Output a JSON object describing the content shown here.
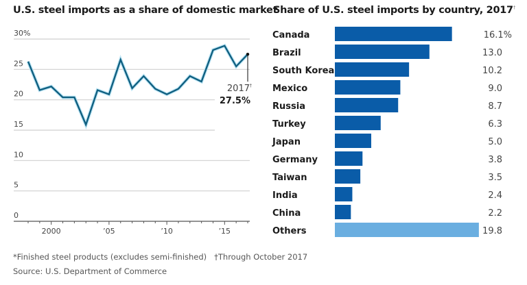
{
  "chart_data": [
    {
      "type": "line",
      "title": "U.S. steel imports as a share of domestic market",
      "title_marker": "*",
      "xlabel": "",
      "ylabel": "",
      "ylim": [
        0,
        30
      ],
      "yticks": [
        0,
        5,
        10,
        15,
        20,
        25,
        30
      ],
      "ytick_labels": [
        "0",
        "5",
        "10",
        "15",
        "20",
        "25",
        "30%"
      ],
      "xlim": [
        1997.3,
        2017.2
      ],
      "xticks_major": [
        2000,
        2005,
        2010,
        2015
      ],
      "xtick_labels": [
        "2000",
        "’05",
        "’10",
        "’15"
      ],
      "grid": true,
      "color": "#0f5f80",
      "x": [
        1998,
        1999,
        2000,
        2001,
        2002,
        2003,
        2004,
        2005,
        2006,
        2007,
        2008,
        2009,
        2010,
        2011,
        2012,
        2013,
        2014,
        2015,
        2016,
        2017
      ],
      "y": [
        26.3,
        21.6,
        22.2,
        20.4,
        20.4,
        15.9,
        21.6,
        20.9,
        26.6,
        21.9,
        23.9,
        21.8,
        20.9,
        21.8,
        23.9,
        23.0,
        28.2,
        28.9,
        25.5,
        27.5
      ],
      "annotation": {
        "x": 2017,
        "label_year": "2017",
        "label_marker": "†",
        "label_value": "27.5%"
      }
    },
    {
      "type": "bar",
      "orientation": "horizontal",
      "title": "Share of U.S. steel imports by country, 2017",
      "title_marker": "†",
      "categories": [
        "Canada",
        "Brazil",
        "South Korea",
        "Mexico",
        "Russia",
        "Turkey",
        "Japan",
        "Germany",
        "Taiwan",
        "India",
        "China",
        "Others"
      ],
      "values": [
        16.1,
        13.0,
        10.2,
        9.0,
        8.7,
        6.3,
        5.0,
        3.8,
        3.5,
        2.4,
        2.2,
        19.8
      ],
      "value_labels": [
        "16.1%",
        "13.0",
        "10.2",
        "9.0",
        "8.7",
        "6.3",
        "5.0",
        "3.8",
        "3.5",
        "2.4",
        "2.2",
        "19.8"
      ],
      "colors": [
        "#0a5ca8",
        "#0a5ca8",
        "#0a5ca8",
        "#0a5ca8",
        "#0a5ca8",
        "#0a5ca8",
        "#0a5ca8",
        "#0a5ca8",
        "#0a5ca8",
        "#0a5ca8",
        "#0a5ca8",
        "#6aaee0"
      ],
      "xlim": [
        0,
        20
      ]
    }
  ],
  "footer": {
    "footnote": "*Finished steel products (excludes semi-finished)   †Through October 2017",
    "source": "Source: U.S. Department of Commerce"
  }
}
